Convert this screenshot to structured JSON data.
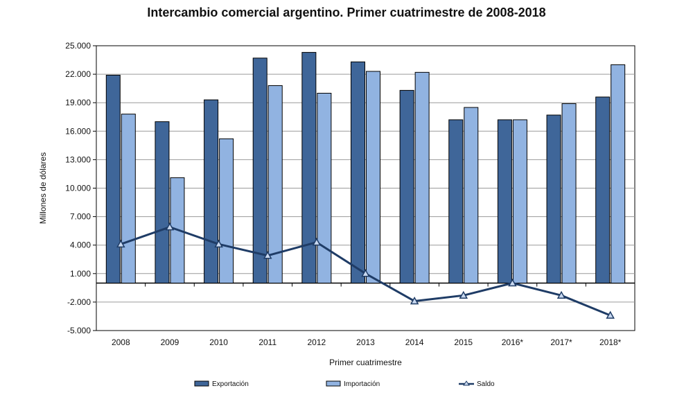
{
  "chart_data": {
    "type": "bar",
    "title": "Intercambio comercial argentino. Primer cuatrimestre de 2008-2018",
    "xlabel": "Primer cuatrimestre",
    "ylabel": "Millones de dólares",
    "categories": [
      "2008",
      "2009",
      "2010",
      "2011",
      "2012",
      "2013",
      "2014",
      "2015",
      "2016*",
      "2017*",
      "2018*"
    ],
    "ylim": [
      -5000,
      25000
    ],
    "yticks": [
      -5000,
      -2000,
      1000,
      4000,
      7000,
      10000,
      13000,
      16000,
      19000,
      22000,
      25000
    ],
    "ytick_labels": [
      "-5.000",
      "-2.000",
      "1.000",
      "4.000",
      "7.000",
      "10.000",
      "13.000",
      "16.000",
      "19.000",
      "22.000",
      "25.000"
    ],
    "grid": true,
    "legend": "bottom",
    "series": [
      {
        "name": "Exportación",
        "type": "bar",
        "color": "#3f6699",
        "values": [
          21900,
          17000,
          19300,
          23700,
          24300,
          23300,
          20300,
          17200,
          17200,
          17700,
          19600
        ]
      },
      {
        "name": "Importación",
        "type": "bar",
        "color": "#91b3e1",
        "values": [
          17800,
          11100,
          15200,
          20800,
          20000,
          22300,
          22200,
          18500,
          17200,
          18900,
          23000
        ]
      },
      {
        "name": "Saldo",
        "type": "line",
        "color": "#1f3c66",
        "values": [
          4100,
          5900,
          4100,
          2900,
          4300,
          1000,
          -1900,
          -1300,
          0,
          -1300,
          -3400
        ]
      }
    ]
  }
}
